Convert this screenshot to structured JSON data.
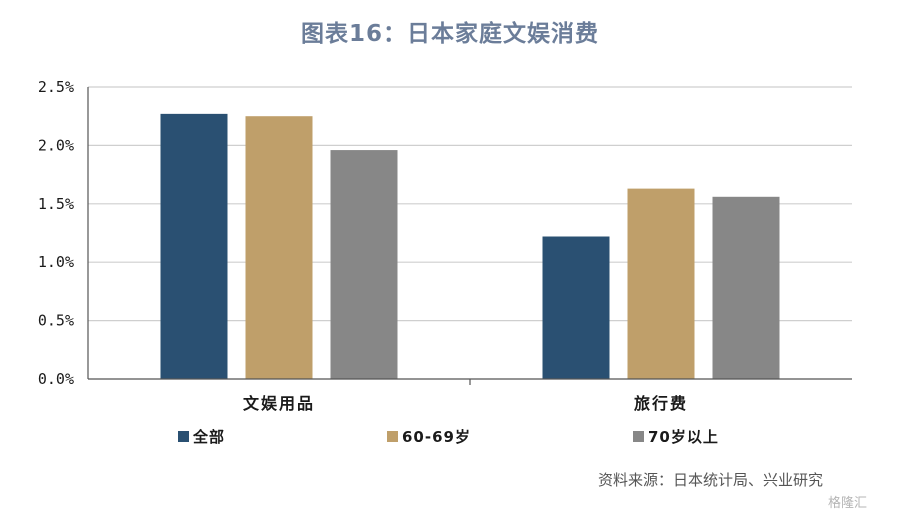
{
  "title": "图表16：日本家庭文娱消费",
  "source": "资料来源：日本统计局、兴业研究",
  "watermark": "格隆汇",
  "colors": {
    "all": "#2a5072",
    "age60_69": "#bf9f6a",
    "age70plus": "#878787",
    "grid": "#cfcfcf",
    "axis": "#555555"
  },
  "chart_data": {
    "type": "bar",
    "categories": [
      "文娱用品",
      "旅行费"
    ],
    "series": [
      {
        "name": "全部",
        "values": [
          2.27,
          1.22
        ]
      },
      {
        "name": "60-69岁",
        "values": [
          2.25,
          1.63
        ]
      },
      {
        "name": "70岁以上",
        "values": [
          1.96,
          1.56
        ]
      }
    ],
    "ylim": [
      0,
      2.5
    ],
    "yticks": [
      "0.0%",
      "0.5%",
      "1.0%",
      "1.5%",
      "2.0%",
      "2.5%"
    ],
    "grid": true,
    "legend": "bottom",
    "title": "图表16：日本家庭文娱消费",
    "xlabel": "",
    "ylabel": ""
  }
}
